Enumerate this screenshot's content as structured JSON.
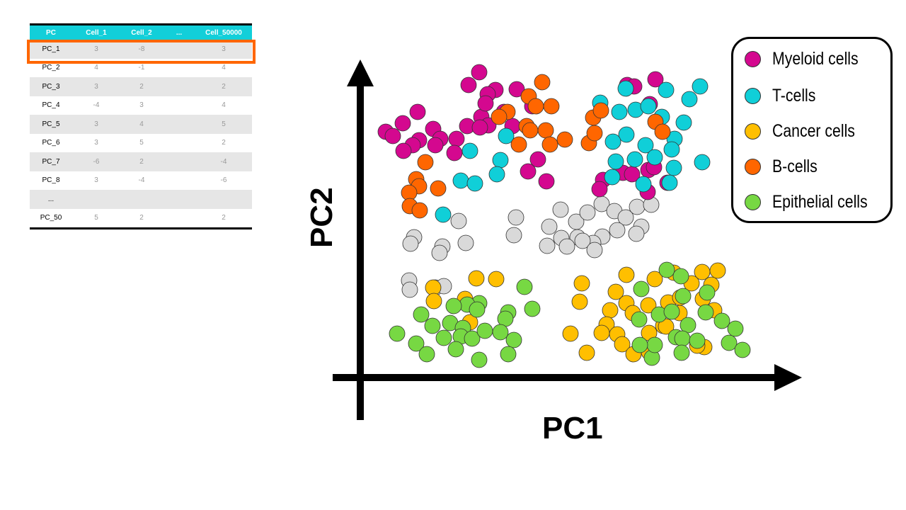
{
  "table": {
    "headers": [
      "PC",
      "Cell_1",
      "Cell_2",
      "...",
      "Cell_50000"
    ],
    "rows": [
      [
        "PC_1",
        "3",
        "-8",
        "",
        "3"
      ],
      [
        "PC_2",
        "4",
        "-1",
        "",
        "4"
      ],
      [
        "PC_3",
        "3",
        "2",
        "",
        "2"
      ],
      [
        "PC_4",
        "-4",
        "3",
        "",
        "4"
      ],
      [
        "PC_5",
        "3",
        "4",
        "",
        "5"
      ],
      [
        "PC_6",
        "3",
        "5",
        "",
        "2"
      ],
      [
        "PC_7",
        "-6",
        "2",
        "",
        "-4"
      ],
      [
        "PC_8",
        "3",
        "-4",
        "",
        "-6"
      ],
      [
        "...",
        "",
        "",
        "",
        ""
      ],
      [
        "PC_50",
        "5",
        "2",
        "",
        "2"
      ]
    ],
    "highlighted_row": "PC_1",
    "highlight_color": "#ff6600",
    "header_color": "#12cfd9"
  },
  "chart_data": {
    "type": "scatter",
    "xlabel": "PC1",
    "ylabel": "PC2",
    "xlim": [
      0,
      60
    ],
    "ylim": [
      0,
      45
    ],
    "grid": false,
    "legend_placement": "top-right",
    "series": [
      {
        "name": "Myeloid cells",
        "color": "#d4088f",
        "points": [
          [
            17.7,
            42.8
          ],
          [
            16.2,
            41.0
          ],
          [
            20.0,
            40.3
          ],
          [
            18.9,
            39.7
          ],
          [
            23.0,
            40.4
          ],
          [
            9.0,
            37.2
          ],
          [
            6.9,
            35.6
          ],
          [
            11.2,
            34.8
          ],
          [
            4.5,
            34.4
          ],
          [
            5.5,
            33.8
          ],
          [
            9.2,
            33.2
          ],
          [
            12.2,
            33.4
          ],
          [
            14.5,
            33.4
          ],
          [
            16.0,
            35.2
          ],
          [
            18.0,
            36.5
          ],
          [
            19.0,
            35.3
          ],
          [
            21.2,
            37.2
          ],
          [
            25.2,
            38.0
          ],
          [
            22.4,
            35.2
          ],
          [
            8.3,
            32.5
          ],
          [
            7.0,
            31.7
          ],
          [
            11.5,
            32.5
          ],
          [
            14.2,
            31.4
          ],
          [
            24.6,
            28.8
          ],
          [
            26.0,
            30.5
          ],
          [
            27.2,
            27.4
          ],
          [
            38.6,
            41.0
          ],
          [
            39.6,
            40.8
          ],
          [
            42.6,
            41.8
          ],
          [
            41.8,
            38.3
          ],
          [
            38.0,
            28.6
          ],
          [
            39.3,
            28.4
          ],
          [
            41.6,
            29.0
          ],
          [
            42.4,
            29.4
          ],
          [
            35.2,
            27.6
          ],
          [
            34.7,
            26.3
          ],
          [
            41.5,
            25.9
          ],
          [
            44.3,
            27.2
          ],
          [
            18.6,
            38.4
          ],
          [
            17.8,
            35.0
          ]
        ]
      },
      {
        "name": "T-cells",
        "color": "#10cfd8",
        "points": [
          [
            38.4,
            40.5
          ],
          [
            44.1,
            40.3
          ],
          [
            47.4,
            39.0
          ],
          [
            48.9,
            40.8
          ],
          [
            34.8,
            38.5
          ],
          [
            37.5,
            37.2
          ],
          [
            39.8,
            37.5
          ],
          [
            41.6,
            38.0
          ],
          [
            43.5,
            36.5
          ],
          [
            46.6,
            35.7
          ],
          [
            38.5,
            34.0
          ],
          [
            36.6,
            33.0
          ],
          [
            41.2,
            32.5
          ],
          [
            45.3,
            33.4
          ],
          [
            44.9,
            31.9
          ],
          [
            42.5,
            30.8
          ],
          [
            37.0,
            30.2
          ],
          [
            39.7,
            30.5
          ],
          [
            45.2,
            29.3
          ],
          [
            49.2,
            30.1
          ],
          [
            40.9,
            27.0
          ],
          [
            44.6,
            27.2
          ],
          [
            21.5,
            33.8
          ],
          [
            16.4,
            31.7
          ],
          [
            20.7,
            30.4
          ],
          [
            20.2,
            28.4
          ],
          [
            15.1,
            27.5
          ],
          [
            17.1,
            27.1
          ],
          [
            12.6,
            22.7
          ],
          [
            36.5,
            28.0
          ]
        ]
      },
      {
        "name": "Cancer cells",
        "color": "#ffbf00",
        "points": [
          [
            17.3,
            13.7
          ],
          [
            20.1,
            13.6
          ],
          [
            11.2,
            12.4
          ],
          [
            11.3,
            10.5
          ],
          [
            15.7,
            10.8
          ],
          [
            16.4,
            7.5
          ],
          [
            32.2,
            13.0
          ],
          [
            31.9,
            10.4
          ],
          [
            38.5,
            14.2
          ],
          [
            42.5,
            13.6
          ],
          [
            45.2,
            14.5
          ],
          [
            49.2,
            14.6
          ],
          [
            51.4,
            14.8
          ],
          [
            50.5,
            12.8
          ],
          [
            47.7,
            13.0
          ],
          [
            37.0,
            11.8
          ],
          [
            38.5,
            10.2
          ],
          [
            41.6,
            9.9
          ],
          [
            44.4,
            10.3
          ],
          [
            46.1,
            11.0
          ],
          [
            49.3,
            10.8
          ],
          [
            50.9,
            9.2
          ],
          [
            46.0,
            8.8
          ],
          [
            43.7,
            7.0
          ],
          [
            36.2,
            9.2
          ],
          [
            39.4,
            8.8
          ],
          [
            35.7,
            7.2
          ],
          [
            35.0,
            6.0
          ],
          [
            37.2,
            5.8
          ],
          [
            37.9,
            4.4
          ],
          [
            41.7,
            6.0
          ],
          [
            44.1,
            6.9
          ],
          [
            30.6,
            5.9
          ],
          [
            32.9,
            3.2
          ],
          [
            39.5,
            3.0
          ],
          [
            41.7,
            3.3
          ],
          [
            49.5,
            4.0
          ],
          [
            48.5,
            4.2
          ]
        ]
      },
      {
        "name": "B-cells",
        "color": "#ff6600",
        "points": [
          [
            26.6,
            41.4
          ],
          [
            24.7,
            39.4
          ],
          [
            25.7,
            38.0
          ],
          [
            27.9,
            38.0
          ],
          [
            21.7,
            37.2
          ],
          [
            20.5,
            36.5
          ],
          [
            24.4,
            35.2
          ],
          [
            24.9,
            34.6
          ],
          [
            27.1,
            34.6
          ],
          [
            29.8,
            33.3
          ],
          [
            27.7,
            32.6
          ],
          [
            23.3,
            32.6
          ],
          [
            33.2,
            32.8
          ],
          [
            34.0,
            34.2
          ],
          [
            33.8,
            36.4
          ],
          [
            34.9,
            37.4
          ],
          [
            42.6,
            35.8
          ],
          [
            43.6,
            34.4
          ],
          [
            10.1,
            30.1
          ],
          [
            8.8,
            27.7
          ],
          [
            9.2,
            26.7
          ],
          [
            11.9,
            26.4
          ],
          [
            7.8,
            25.8
          ],
          [
            7.9,
            23.9
          ],
          [
            9.3,
            23.3
          ]
        ]
      },
      {
        "name": "Epithelial cells",
        "color": "#77d843",
        "points": [
          [
            24.1,
            12.5
          ],
          [
            25.2,
            9.4
          ],
          [
            21.8,
            8.9
          ],
          [
            21.4,
            8.0
          ],
          [
            17.7,
            10.2
          ],
          [
            16.0,
            10.0
          ],
          [
            17.4,
            9.3
          ],
          [
            14.1,
            9.8
          ],
          [
            9.5,
            8.6
          ],
          [
            11.1,
            7.0
          ],
          [
            13.6,
            7.4
          ],
          [
            15.4,
            6.7
          ],
          [
            12.7,
            5.3
          ],
          [
            15.1,
            5.5
          ],
          [
            16.7,
            5.2
          ],
          [
            18.5,
            6.3
          ],
          [
            20.7,
            6.1
          ],
          [
            22.6,
            5.0
          ],
          [
            6.1,
            5.9
          ],
          [
            8.8,
            4.5
          ],
          [
            10.3,
            3.0
          ],
          [
            14.4,
            3.7
          ],
          [
            17.7,
            2.2
          ],
          [
            21.8,
            3.0
          ],
          [
            44.2,
            14.9
          ],
          [
            46.2,
            14.0
          ],
          [
            40.6,
            12.2
          ],
          [
            46.5,
            11.2
          ],
          [
            49.9,
            11.7
          ],
          [
            43.1,
            8.6
          ],
          [
            44.9,
            9.0
          ],
          [
            47.2,
            7.1
          ],
          [
            49.7,
            8.9
          ],
          [
            52.0,
            7.7
          ],
          [
            53.9,
            6.6
          ],
          [
            45.5,
            5.4
          ],
          [
            46.4,
            5.2
          ],
          [
            48.5,
            4.9
          ],
          [
            53.0,
            4.6
          ],
          [
            54.9,
            3.6
          ],
          [
            46.3,
            3.2
          ],
          [
            42.1,
            2.5
          ],
          [
            42.5,
            4.3
          ],
          [
            40.4,
            4.3
          ],
          [
            40.3,
            7.9
          ]
        ]
      },
      {
        "name": "unlabeled",
        "color": "#d9d9d9",
        "in_legend": false,
        "points": [
          [
            22.9,
            22.3
          ],
          [
            22.6,
            19.8
          ],
          [
            29.2,
            23.4
          ],
          [
            27.6,
            21.0
          ],
          [
            31.4,
            21.7
          ],
          [
            33.0,
            23.0
          ],
          [
            35.0,
            24.2
          ],
          [
            36.8,
            23.2
          ],
          [
            38.4,
            22.3
          ],
          [
            40.0,
            23.8
          ],
          [
            42.0,
            24.1
          ],
          [
            40.6,
            21.0
          ],
          [
            37.2,
            20.5
          ],
          [
            35.1,
            19.6
          ],
          [
            33.8,
            18.7
          ],
          [
            31.6,
            19.5
          ],
          [
            29.3,
            19.4
          ],
          [
            30.1,
            18.2
          ],
          [
            27.3,
            18.3
          ],
          [
            32.3,
            19.0
          ],
          [
            34.0,
            17.7
          ],
          [
            39.9,
            20.0
          ],
          [
            8.5,
            19.5
          ],
          [
            8.0,
            18.6
          ],
          [
            12.5,
            18.2
          ],
          [
            12.1,
            17.3
          ],
          [
            15.8,
            18.7
          ],
          [
            14.8,
            21.8
          ],
          [
            7.8,
            13.4
          ],
          [
            7.9,
            12.1
          ],
          [
            11.5,
            12.4
          ],
          [
            12.7,
            12.6
          ]
        ]
      }
    ]
  }
}
